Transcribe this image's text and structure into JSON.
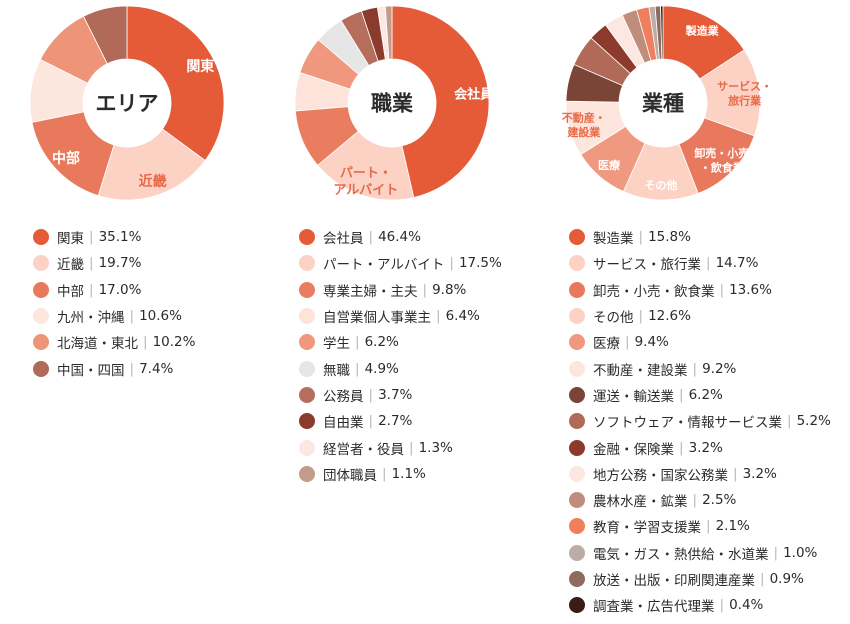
{
  "chart_data": [
    {
      "type": "pie",
      "title": "エリア",
      "slices": [
        {
          "label": "関東",
          "short": "関東",
          "value": 35.1,
          "display": "35.1%",
          "color": "#e55a37",
          "show": true
        },
        {
          "label": "近畿",
          "short": "近畿",
          "value": 19.7,
          "display": "19.7%",
          "color": "#fcd2c4",
          "show": true,
          "dark": true
        },
        {
          "label": "中部",
          "short": "中部",
          "value": 17.0,
          "display": "17.0%",
          "color": "#e8795c",
          "show": true
        },
        {
          "label": "九州・沖縄",
          "short": "",
          "value": 10.6,
          "display": "10.6%",
          "color": "#fde6de",
          "show": false
        },
        {
          "label": "北海道・東北",
          "short": "",
          "value": 10.2,
          "display": "10.2%",
          "color": "#ee9479",
          "show": false
        },
        {
          "label": "中国・四国",
          "short": "",
          "value": 7.4,
          "display": "7.4%",
          "color": "#b06a57",
          "show": false
        }
      ]
    },
    {
      "type": "pie",
      "title": "職業",
      "slices": [
        {
          "label": "会社員",
          "short": "会社員",
          "value": 46.4,
          "display": "46.4%",
          "color": "#e55a37",
          "show": true
        },
        {
          "label": "パート・アルバイト",
          "short": "パート・アルバイト",
          "value": 17.5,
          "display": "17.5%",
          "color": "#fcd2c4",
          "show": true,
          "dark": true
        },
        {
          "label": "専業主婦・主夫",
          "short": "",
          "value": 9.8,
          "display": "9.8%",
          "color": "#ea7d60",
          "show": false
        },
        {
          "label": "自営業個人事業主",
          "short": "",
          "value": 6.4,
          "display": "6.4%",
          "color": "#fde3da",
          "show": false
        },
        {
          "label": "学生",
          "short": "",
          "value": 6.2,
          "display": "6.2%",
          "color": "#f0987e",
          "show": false
        },
        {
          "label": "無職",
          "short": "",
          "value": 4.9,
          "display": "4.9%",
          "color": "#e6e6e6",
          "show": false
        },
        {
          "label": "公務員",
          "short": "",
          "value": 3.7,
          "display": "3.7%",
          "color": "#b56e5b",
          "show": false
        },
        {
          "label": "自由業",
          "short": "",
          "value": 2.7,
          "display": "2.7%",
          "color": "#8c3a2c",
          "show": false
        },
        {
          "label": "経営者・役員",
          "short": "",
          "value": 1.3,
          "display": "1.3%",
          "color": "#fde8e1",
          "show": false
        },
        {
          "label": "団体職員",
          "short": "",
          "value": 1.1,
          "display": "1.1%",
          "color": "#c49a8a",
          "show": false
        }
      ]
    },
    {
      "type": "pie",
      "title": "業種",
      "slices": [
        {
          "label": "製造業",
          "short": "製造業",
          "value": 15.8,
          "display": "15.8%",
          "color": "#e55a37",
          "show": true
        },
        {
          "label": "サービス・旅行業",
          "short": "サービス・旅行業",
          "value": 14.7,
          "display": "14.7%",
          "color": "#fcd2c4",
          "show": true,
          "dark": true
        },
        {
          "label": "卸売・小売・飲食業",
          "short": "卸売・小売・飲食業",
          "value": 13.6,
          "display": "13.6%",
          "color": "#e8795c",
          "show": true
        },
        {
          "label": "その他",
          "short": "その他",
          "value": 12.6,
          "display": "12.6%",
          "color": "#fcd2c4",
          "show": true
        },
        {
          "label": "医療",
          "short": "医療",
          "value": 9.4,
          "display": "9.4%",
          "color": "#ef9a80",
          "show": true
        },
        {
          "label": "不動産・建設業",
          "short": "不動産・建設業",
          "value": 9.2,
          "display": "9.2%",
          "color": "#fde6de",
          "show": true,
          "dark": true
        },
        {
          "label": "運送・輸送業",
          "short": "",
          "value": 6.2,
          "display": "6.2%",
          "color": "#7a4436",
          "show": false
        },
        {
          "label": "ソフトウェア・情報サービス業",
          "short": "",
          "value": 5.2,
          "display": "5.2%",
          "color": "#b06a57",
          "show": false
        },
        {
          "label": "金融・保険業",
          "short": "",
          "value": 3.2,
          "display": "3.2%",
          "color": "#8c3a2c",
          "show": false
        },
        {
          "label": "地方公務・国家公務業",
          "short": "",
          "value": 3.2,
          "display": "3.2%",
          "color": "#fde8e1",
          "show": false
        },
        {
          "label": "農林水産・鉱業",
          "short": "",
          "value": 2.5,
          "display": "2.5%",
          "color": "#c08d7c",
          "show": false
        },
        {
          "label": "教育・学習支援業",
          "short": "",
          "value": 2.1,
          "display": "2.1%",
          "color": "#ef7f5f",
          "show": false
        },
        {
          "label": "電気・ガス・熱供給・水道業",
          "short": "",
          "value": 1.0,
          "display": "1.0%",
          "color": "#bcaca6",
          "show": false
        },
        {
          "label": "放送・出版・印刷関連産業",
          "short": "",
          "value": 0.9,
          "display": "0.9%",
          "color": "#8f6a60",
          "show": false
        },
        {
          "label": "調査業・広告代理業",
          "short": "",
          "value": 0.4,
          "display": "0.4%",
          "color": "#3b1c14",
          "show": false
        }
      ]
    }
  ]
}
